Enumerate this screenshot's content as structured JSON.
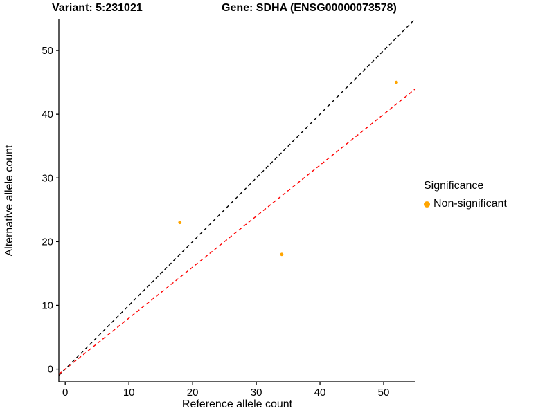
{
  "header": {
    "variant_title": "Variant: 5:231021",
    "gene_title": "Gene: SDHA (ENSG00000073578)"
  },
  "chart_data": {
    "type": "scatter",
    "title_left": "Variant: 5:231021",
    "title_right": "Gene: SDHA (ENSG00000073578)",
    "xlabel": "Reference allele count",
    "ylabel": "Alternative allele count",
    "xlim": [
      -1,
      55
    ],
    "ylim": [
      -2,
      55
    ],
    "xticks": [
      0,
      10,
      20,
      30,
      40,
      50
    ],
    "yticks": [
      0,
      10,
      20,
      30,
      40,
      50
    ],
    "grid": false,
    "background": "#FFFFFF",
    "point_color": "#FFA500",
    "points": [
      {
        "x": 18,
        "y": 23,
        "significance": "Non-significant"
      },
      {
        "x": 34,
        "y": 18,
        "significance": "Non-significant"
      },
      {
        "x": 52,
        "y": 45,
        "significance": "Non-significant"
      }
    ],
    "lines": [
      {
        "name": "identity",
        "slope": 1.0,
        "intercept": 0,
        "color": "#000000",
        "style": "dashed"
      },
      {
        "name": "expected-ratio",
        "slope": 0.8,
        "intercept": 0,
        "color": "#FF0000",
        "style": "dashed"
      }
    ],
    "legend": {
      "title": "Significance",
      "position": "right",
      "items": [
        {
          "label": "Non-significant",
          "color": "#FFA500"
        }
      ]
    }
  }
}
